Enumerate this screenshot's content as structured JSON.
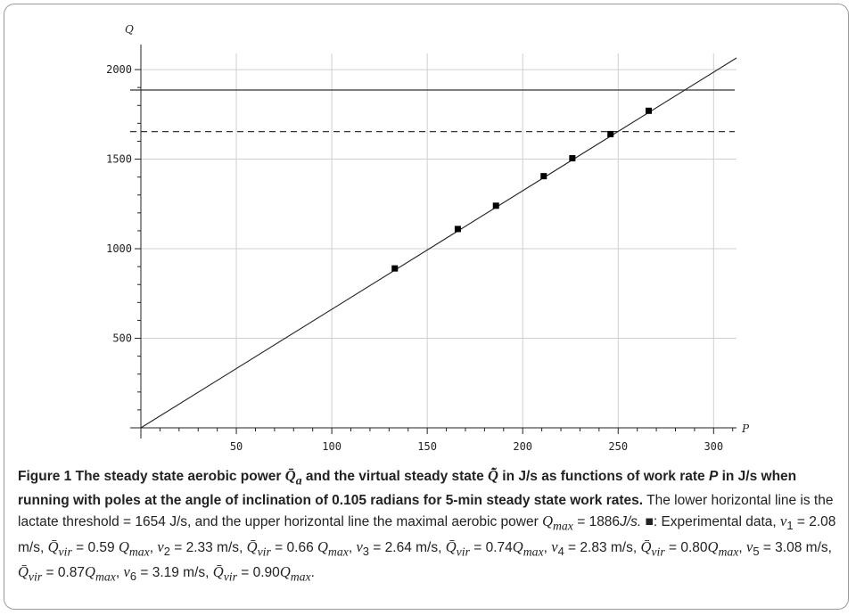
{
  "chart_data": {
    "type": "line",
    "x_ticks": [
      50,
      100,
      150,
      200,
      250,
      300
    ],
    "y_ticks": [
      500,
      1000,
      1500,
      2000
    ],
    "xlim": [
      0,
      312
    ],
    "ylim": [
      0,
      2080
    ],
    "xlabel": "P",
    "ylabel": "Q",
    "grid": true,
    "horizontal_lines": [
      {
        "y": 1886,
        "style": "solid"
      },
      {
        "y": 1654,
        "style": "dashed"
      }
    ],
    "fit_line": {
      "x": [
        0,
        312
      ],
      "y": [
        0,
        2065
      ]
    },
    "experimental_points": {
      "x": [
        133,
        166,
        186,
        211,
        226,
        246,
        266
      ],
      "y": [
        890,
        1110,
        1240,
        1405,
        1505,
        1640,
        1770
      ]
    }
  },
  "caption": {
    "title": "Figure 1 The steady state aerobic power Q̄a and the virtual steady state Q̄̃ in J/s as functions of work rate P in J/s when running with poles at the angle of inclination of 0.105 radians for 5-min steady state work rates.",
    "body_1": "The lower horizontal line is the lactate threshold = 1654 J/s, and the upper horizontal line the maximal aerobic power Qmax = 1886J/s. ■: Experimental data,",
    "data_text": "v1 = 2.08 m/s, Q̄vir = 0.59 Qmax, v2 = 2.33 m/s, Q̄vir = 0.66 Qmax, v3 = 2.64 m/s, Q̄vir = 0.74Qmax, v4 = 2.83 m/s, Q̄vir = 0.80Qmax, v5 = 3.08 m/s, Q̄vir = 0.87Qmax, v6 = 3.19 m/s, Q̄vir = 0.90Qmax."
  }
}
